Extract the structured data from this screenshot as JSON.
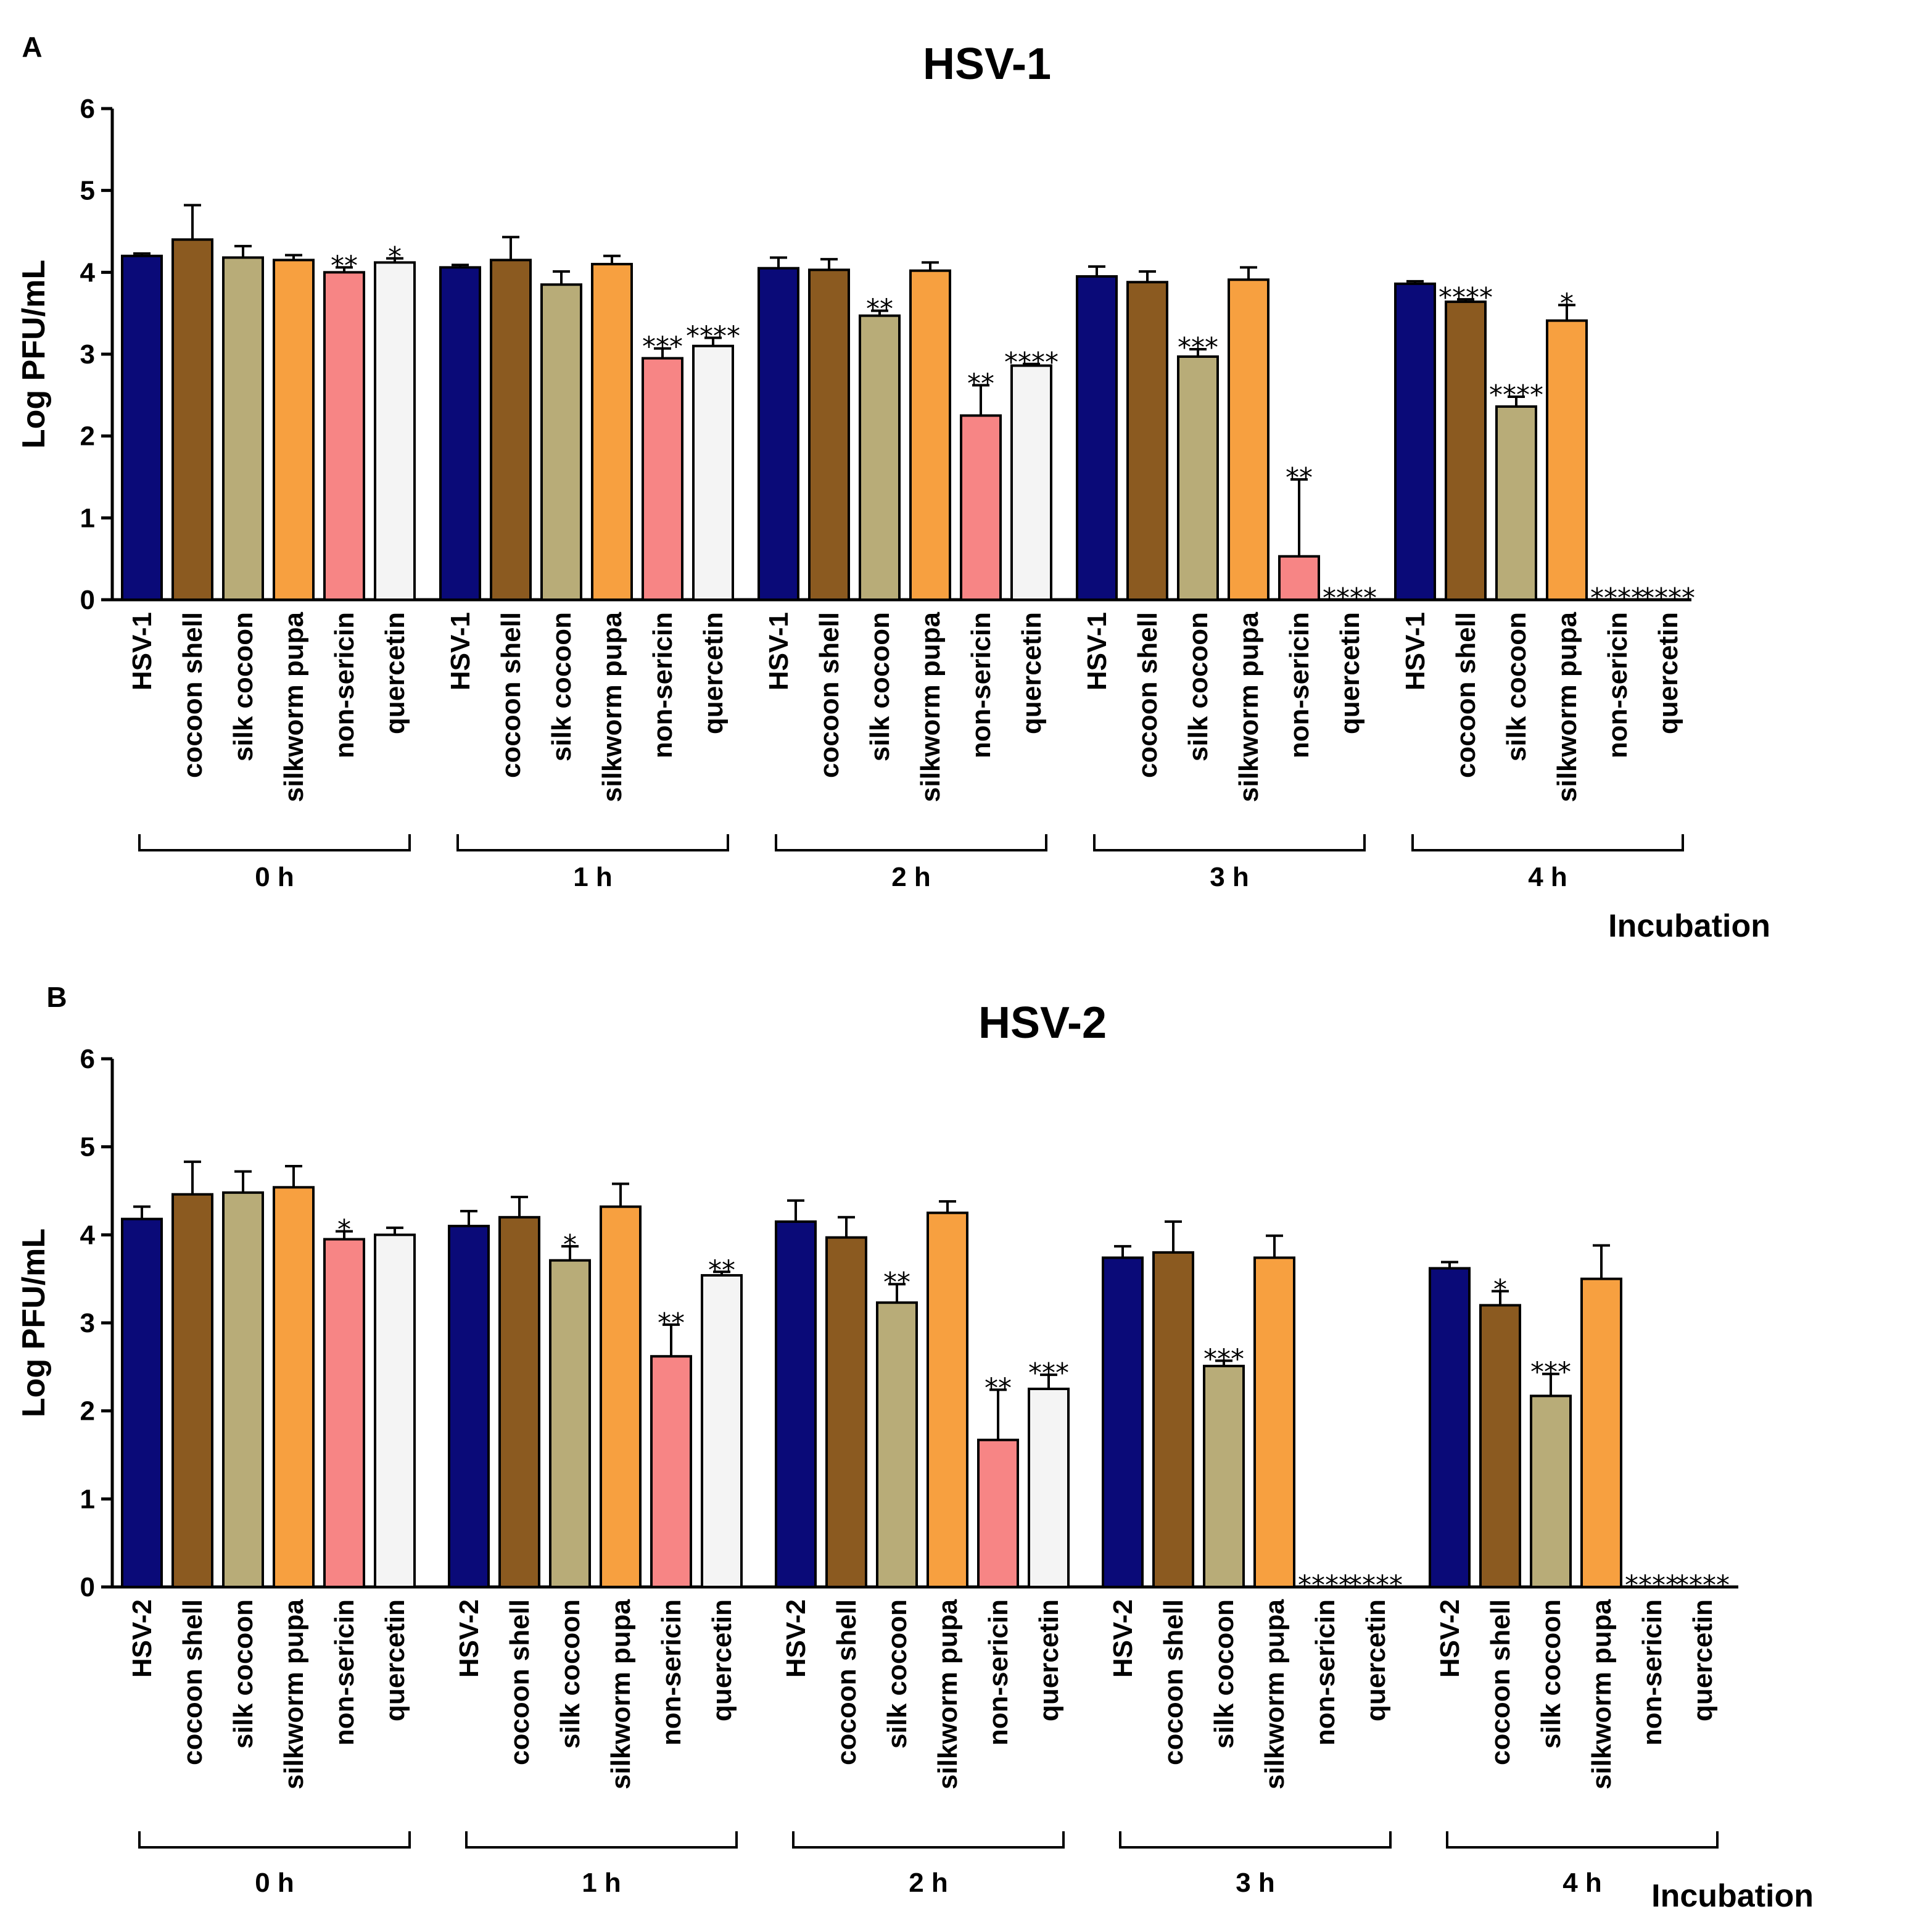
{
  "figure": {
    "colors": {
      "HSV": "#0a0a78",
      "cocoon shell": "#8b5a20",
      "silk cocoon": "#b8ac78",
      "silkworm pupa": "#f7a040",
      "non-sericin": "#f78585",
      "quercetin": "#f4f4f4"
    }
  },
  "chart_data": [
    {
      "panel": "A",
      "type": "bar",
      "title": "HSV-1",
      "ylabel": "Log PFU/mL",
      "xlabel": "Incubation",
      "ylim": [
        0,
        6
      ],
      "yticks": [
        "0",
        "1",
        "2",
        "3",
        "4",
        "5",
        "6"
      ],
      "series_names": [
        "HSV-1",
        "cocoon shell",
        "silk cocoon",
        "silkworm pupa",
        "non-sericin",
        "quercetin"
      ],
      "color_keys": [
        "HSV",
        "cocoon shell",
        "silk cocoon",
        "silkworm pupa",
        "non-sericin",
        "quercetin"
      ],
      "groups": [
        {
          "label": "0 h",
          "values": [
            4.2,
            4.4,
            4.18,
            4.15,
            4.0,
            4.12
          ],
          "errors": [
            0.03,
            0.42,
            0.14,
            0.06,
            0.06,
            0.05
          ],
          "sig": [
            "",
            "",
            "",
            "",
            "**",
            "*"
          ]
        },
        {
          "label": "1 h",
          "values": [
            4.06,
            4.15,
            3.85,
            4.1,
            2.95,
            3.1
          ],
          "errors": [
            0.03,
            0.28,
            0.16,
            0.1,
            0.12,
            0.1
          ],
          "sig": [
            "",
            "",
            "",
            "",
            "***",
            "****"
          ]
        },
        {
          "label": "2 h",
          "values": [
            4.05,
            4.03,
            3.47,
            4.02,
            2.25,
            2.86
          ],
          "errors": [
            0.13,
            0.13,
            0.06,
            0.1,
            0.37,
            0.02
          ],
          "sig": [
            "",
            "",
            "**",
            "",
            "**",
            "****"
          ]
        },
        {
          "label": "3 h",
          "values": [
            3.95,
            3.88,
            2.97,
            3.91,
            0.53,
            0
          ],
          "errors": [
            0.12,
            0.13,
            0.09,
            0.15,
            0.94,
            0
          ],
          "sig": [
            "",
            "",
            "***",
            "",
            "**",
            "****"
          ]
        },
        {
          "label": "4 h",
          "values": [
            3.86,
            3.64,
            2.36,
            3.41,
            0,
            0
          ],
          "errors": [
            0.03,
            0.03,
            0.12,
            0.19,
            0,
            0
          ],
          "sig": [
            "",
            "****",
            "****",
            "*",
            "****",
            "****"
          ]
        }
      ]
    },
    {
      "panel": "B",
      "type": "bar",
      "title": "HSV-2",
      "ylabel": "Log PFU/mL",
      "xlabel": "Incubation",
      "ylim": [
        0,
        6
      ],
      "yticks": [
        "0",
        "1",
        "2",
        "3",
        "4",
        "5",
        "6"
      ],
      "series_names": [
        "HSV-2",
        "cocoon shell",
        "silk cocoon",
        "silkworm pupa",
        "non-sericin",
        "quercetin"
      ],
      "color_keys": [
        "HSV",
        "cocoon shell",
        "silk cocoon",
        "silkworm pupa",
        "non-sericin",
        "quercetin"
      ],
      "groups": [
        {
          "label": "0 h",
          "values": [
            4.18,
            4.46,
            4.48,
            4.54,
            3.95,
            4.0
          ],
          "errors": [
            0.14,
            0.37,
            0.24,
            0.24,
            0.09,
            0.08
          ],
          "sig": [
            "",
            "",
            "",
            "",
            "*",
            ""
          ]
        },
        {
          "label": "1 h",
          "values": [
            4.1,
            4.2,
            3.71,
            4.32,
            2.62,
            3.54
          ],
          "errors": [
            0.17,
            0.23,
            0.16,
            0.26,
            0.36,
            0.04
          ],
          "sig": [
            "",
            "",
            "*",
            "",
            "**",
            "**"
          ]
        },
        {
          "label": "2 h",
          "values": [
            4.15,
            3.97,
            3.23,
            4.25,
            1.67,
            2.25
          ],
          "errors": [
            0.24,
            0.23,
            0.21,
            0.13,
            0.57,
            0.16
          ],
          "sig": [
            "",
            "",
            "**",
            "",
            "**",
            "***"
          ]
        },
        {
          "label": "3 h",
          "values": [
            3.74,
            3.8,
            2.51,
            3.74,
            0,
            0
          ],
          "errors": [
            0.13,
            0.35,
            0.06,
            0.25,
            0,
            0
          ],
          "sig": [
            "",
            "",
            "***",
            "",
            "****",
            "****"
          ]
        },
        {
          "label": "4 h",
          "values": [
            3.62,
            3.2,
            2.17,
            3.5,
            0,
            0
          ],
          "errors": [
            0.07,
            0.16,
            0.25,
            0.38,
            0,
            0
          ],
          "sig": [
            "",
            "*",
            "***",
            "",
            "****",
            "****"
          ]
        }
      ]
    }
  ]
}
